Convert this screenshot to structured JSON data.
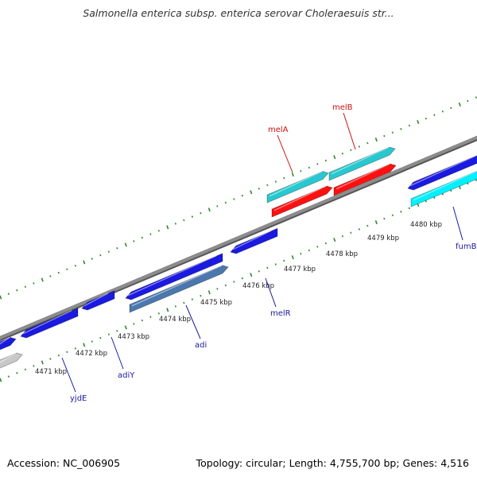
{
  "title": "Salmonella enterica subsp. enterica serovar Choleraesuis str...",
  "accession_text": "Accession: NC_006905",
  "summary_text": "Topology: circular; Length: 4,755,700 bp; Genes: 4,516",
  "colors": {
    "backbone": "#8c8c8c",
    "tick_dots": "#2a8a2a",
    "gene_blue": "#1a1ae0",
    "gene_cyan": "#28c8d0",
    "gene_cyan_bright": "#00f0ff",
    "gene_red": "#ff1010",
    "gene_steel": "#4a78ae",
    "gene_gray": "#c8c8c8",
    "label_blue": "#1a1aa0",
    "label_red": "#d01010"
  },
  "scale_labels": [
    "4471 kbp",
    "4472 kbp",
    "4473 kbp",
    "4474 kbp",
    "4475 kbp",
    "4476 kbp",
    "4477 kbp",
    "4478 kbp",
    "4479 kbp",
    "4480 kbp"
  ],
  "gene_labels": [
    {
      "name": "melB",
      "color": "red"
    },
    {
      "name": "melA",
      "color": "red"
    },
    {
      "name": "yjdE",
      "color": "blue"
    },
    {
      "name": "adiY",
      "color": "blue"
    },
    {
      "name": "adi",
      "color": "blue"
    },
    {
      "name": "melR",
      "color": "blue"
    },
    {
      "name": "fumB",
      "color": "blue"
    }
  ]
}
